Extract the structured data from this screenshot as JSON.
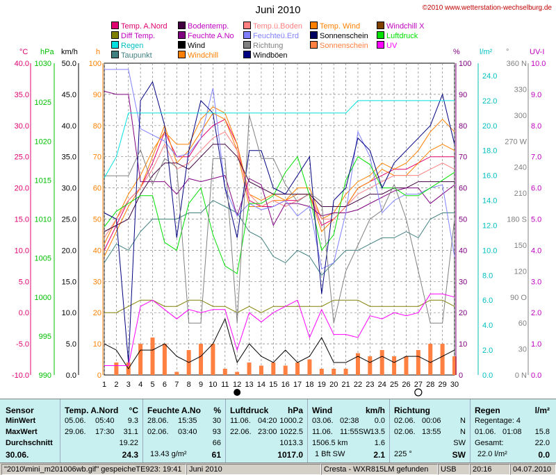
{
  "title": "Juni 2010",
  "copyright": "©2010 www.wetterstation-wechselburg.de",
  "legend": [
    {
      "label": "Temp. A.Nord",
      "color": "#e0006f",
      "col": 0,
      "row": 0
    },
    {
      "label": "Diff Temp.",
      "color": "#808000",
      "col": 0,
      "row": 1
    },
    {
      "label": "Regen",
      "color": "#00e0e0",
      "col": 0,
      "row": 2
    },
    {
      "label": "Taupunkt",
      "color": "#408080",
      "col": 0,
      "row": 3
    },
    {
      "label": "Bodentemp.",
      "color": "#400040",
      "col": 1,
      "row": 0
    },
    {
      "label": "Feuchte A.No",
      "color": "#800080",
      "col": 1,
      "row": 1
    },
    {
      "label": "Wind",
      "color": "#000000",
      "col": 1,
      "row": 2
    },
    {
      "label": "Windchill",
      "color": "#ff8000",
      "col": 1,
      "row": 3
    },
    {
      "label": "Temp.ü.Boden",
      "color": "#ff8080",
      "col": 2,
      "row": 0
    },
    {
      "label": "Feuchteü.Erd",
      "color": "#8080ff",
      "col": 2,
      "row": 1
    },
    {
      "label": "Richtung",
      "color": "#808080",
      "col": 2,
      "row": 2
    },
    {
      "label": "Windböen",
      "color": "#000080",
      "col": 2,
      "row": 3
    },
    {
      "label": "Temp. Wind",
      "color": "#ff8000",
      "col": 3,
      "row": 0
    },
    {
      "label": "Sonnenschein",
      "color": "#000060",
      "col": 3,
      "row": 1
    },
    {
      "label": "Sonnenschein",
      "color": "#ff8040",
      "col": 3,
      "row": 2
    },
    {
      "label": "Windchill X",
      "color": "#804000",
      "col": 4,
      "row": 0
    },
    {
      "label": "Luftdruck",
      "color": "#00e000",
      "col": 4,
      "row": 1
    },
    {
      "label": "UV",
      "color": "#ff00ff",
      "col": 4,
      "row": 2
    }
  ],
  "axes": {
    "temp": {
      "unit": "°C",
      "ticks": [
        "40.0",
        "35.0",
        "30.0",
        "25.0",
        "20.0",
        "15.0",
        "10.0",
        "5.0",
        "0.0",
        "-5.0",
        "-10.0"
      ],
      "color": "#e0006f"
    },
    "hpa": {
      "unit": "hPa",
      "ticks": [
        "1030",
        "1025",
        "1020",
        "1015",
        "1010",
        "1005",
        "1000",
        "995",
        "990"
      ],
      "color": "#00c000"
    },
    "kmh": {
      "unit": "km/h",
      "ticks": [
        "50.0",
        "45.0",
        "40.0",
        "35.0",
        "30.0",
        "25.0",
        "20.0",
        "15.0",
        "10.0",
        "5.0",
        "0.0"
      ],
      "color": "#000000"
    },
    "h": {
      "unit": "h",
      "ticks": [
        "100",
        "90",
        "80",
        "70",
        "60",
        "50",
        "40",
        "30",
        "20",
        "10",
        "0"
      ],
      "color": "#ff8000"
    },
    "pct": {
      "unit": "%",
      "ticks": [
        "100",
        "90",
        "80",
        "70",
        "60",
        "50",
        "40",
        "30",
        "20",
        "10",
        "0"
      ],
      "color": "#800080"
    },
    "rain": {
      "unit": "l/m²",
      "ticks": [
        "24.0",
        "22.0",
        "20.0",
        "18.0",
        "16.0",
        "14.0",
        "12.0",
        "10.0",
        "8.0",
        "6.0",
        "4.0",
        "2.0",
        "0.0"
      ],
      "color": "#00c0c0"
    },
    "dir": {
      "unit": "°",
      "ticks": [
        "360 N",
        "330",
        "300",
        "270 W",
        "240",
        "210",
        "180 S",
        "150",
        "120",
        "90 O",
        "60",
        "30",
        "0 N"
      ],
      "color": "#808080"
    },
    "uv": {
      "unit": "UV-I",
      "ticks": [
        "10.0",
        "9.0",
        "8.0",
        "7.0",
        "6.0",
        "5.0",
        "4.0",
        "3.0",
        "2.0",
        "1.0",
        "0.0"
      ],
      "color": "#c000c0"
    }
  },
  "chart_data": {
    "type": "line",
    "title": "Juni 2010",
    "x": [
      1,
      2,
      3,
      4,
      5,
      6,
      7,
      8,
      9,
      10,
      11,
      12,
      13,
      14,
      15,
      16,
      17,
      18,
      19,
      20,
      21,
      22,
      23,
      24,
      25,
      26,
      27,
      28,
      29,
      30
    ],
    "xlabels": [
      "1",
      "2",
      "3",
      "4",
      "5",
      "6",
      "7",
      "8",
      "9",
      "10",
      "11",
      "12",
      "13",
      "14",
      "15",
      "16",
      "17",
      "18",
      "19",
      "20",
      "21",
      "22",
      "23",
      "24",
      "25",
      "26",
      "27",
      "28",
      "29",
      "30"
    ],
    "moon_new_day": 12,
    "moon_full_day": 27,
    "ylim_temp": [
      -10,
      40
    ],
    "grid": true,
    "series": [
      {
        "name": "Temp. A.Nord",
        "axis": "temp",
        "color": "#e0006f",
        "values": [
          10,
          14,
          18,
          20,
          24,
          29,
          25,
          25,
          28,
          30,
          31,
          27,
          18,
          17,
          17,
          18,
          18,
          19,
          14,
          15,
          17,
          20,
          21,
          22,
          23,
          23,
          24,
          25,
          25,
          25
        ]
      },
      {
        "name": "Windchill",
        "axis": "temp",
        "color": "#ff8000",
        "values": [
          9,
          13,
          17,
          20,
          25,
          30,
          24,
          26,
          29,
          32,
          31,
          26,
          17,
          17,
          18,
          18,
          19,
          19,
          13,
          15,
          17,
          20,
          21,
          23,
          22,
          22,
          24,
          26,
          27,
          26
        ]
      },
      {
        "name": "Temp. Wind",
        "axis": "temp",
        "color": "#ff8000",
        "values": [
          11,
          15,
          19,
          22,
          26,
          29,
          27,
          27,
          31,
          33,
          32,
          27,
          19,
          18,
          19,
          18,
          20,
          20,
          15,
          16,
          19,
          21,
          22,
          24,
          23,
          24,
          26,
          29,
          31,
          29
        ]
      },
      {
        "name": "Temp.ü.Boden",
        "axis": "temp",
        "color": "#ff8080",
        "values": [
          12,
          15,
          18,
          20,
          23,
          27,
          23,
          24,
          26,
          28,
          29,
          26,
          19,
          17,
          18,
          17,
          18,
          19,
          15,
          15,
          17,
          19,
          20,
          21,
          22,
          22,
          22,
          23,
          24,
          23
        ]
      },
      {
        "name": "Bodentemp.",
        "axis": "temp",
        "color": "#400040",
        "values": [
          13,
          14,
          15,
          19,
          22,
          24,
          24,
          23,
          25,
          27,
          27,
          25,
          21,
          20,
          19,
          19,
          19,
          19,
          17,
          17,
          17,
          18,
          19,
          19,
          20,
          20,
          21,
          21,
          21,
          21
        ]
      },
      {
        "name": "Taupunkt",
        "axis": "temp",
        "color": "#408080",
        "values": [
          8,
          11,
          10,
          13,
          15,
          15,
          15,
          16,
          16,
          18,
          17,
          16,
          13,
          12,
          9,
          8,
          10,
          9,
          6,
          8,
          10,
          10,
          11,
          12,
          12,
          13,
          12,
          15,
          16,
          16
        ]
      },
      {
        "name": "Diff Temp.",
        "axis": "temp",
        "color": "#808000",
        "values": [
          0,
          0,
          1,
          2,
          2,
          1,
          1,
          2,
          2,
          1,
          1,
          0,
          1,
          0,
          1,
          1,
          1,
          1,
          1,
          2,
          2,
          2,
          1,
          1,
          1,
          1,
          1,
          2,
          2,
          1
        ]
      },
      {
        "name": "Feuchte A.No",
        "axis": "pct",
        "color": "#800080",
        "values": [
          91,
          90,
          90,
          62,
          62,
          62,
          58,
          63,
          62,
          63,
          64,
          51,
          63,
          61,
          48,
          55,
          55,
          54,
          51,
          52,
          52,
          53,
          55,
          57,
          59,
          60,
          60,
          55,
          58,
          61
        ]
      },
      {
        "name": "Feuchteü.Erd",
        "axis": "pct",
        "color": "#8080ff",
        "values": [
          98,
          98,
          98,
          79,
          77,
          75,
          70,
          71,
          76,
          92,
          60,
          51,
          55,
          53,
          54,
          56,
          51,
          54,
          34,
          36,
          52,
          78,
          70,
          52,
          56,
          58,
          58,
          60,
          61,
          38
        ]
      },
      {
        "name": "Luftdruck",
        "axis": "hpa",
        "color": "#00e000",
        "values": [
          1009,
          1011,
          1012,
          1013,
          1013,
          1007,
          1006,
          1012,
          1014,
          1008,
          1004,
          1003,
          1012,
          1012,
          1013,
          1016,
          1018,
          1013,
          1006,
          1008,
          1015,
          1018,
          1017,
          1014,
          1014,
          1013,
          1013,
          1014,
          1015,
          1016
        ]
      },
      {
        "name": "Windböen",
        "axis": "kmh",
        "color": "#000080",
        "values": [
          26,
          25,
          2,
          44,
          47,
          40,
          22,
          36,
          44,
          42,
          30,
          22,
          36,
          36,
          30,
          29,
          32,
          35,
          13,
          28,
          30,
          38,
          36,
          30,
          34,
          36,
          38,
          40,
          45,
          37
        ]
      },
      {
        "name": "Wind",
        "axis": "kmh",
        "color": "#000000",
        "values": [
          5,
          4,
          1,
          4,
          4,
          5,
          3,
          2,
          3,
          5,
          9,
          2,
          5,
          3,
          2,
          4,
          2,
          3,
          6,
          2,
          2,
          3,
          2,
          3,
          2,
          3,
          3,
          2,
          3,
          4
        ]
      },
      {
        "name": "Richtung",
        "axis": "dir",
        "color": "#808080",
        "values": [
          230,
          230,
          230,
          260,
          220,
          250,
          240,
          60,
          60,
          250,
          250,
          60,
          300,
          250,
          250,
          220,
          200,
          210,
          200,
          60,
          120,
          150,
          180,
          190,
          220,
          180,
          120,
          60,
          60,
          180
        ]
      },
      {
        "name": "UV",
        "axis": "uv",
        "color": "#ff00ff",
        "values": [
          0.3,
          0.3,
          0.3,
          2.2,
          2.4,
          2.1,
          1.8,
          2.1,
          2.0,
          2.1,
          2.1,
          0.8,
          2.0,
          1.7,
          2.0,
          2.2,
          2.4,
          1.2,
          2.1,
          1.3,
          1.3,
          1.2,
          1.9,
          1.8,
          2.0,
          1.9,
          2.0,
          2.6,
          2.6,
          2.5
        ]
      },
      {
        "name": "Regen",
        "axis": "rain",
        "color": "#00e0e0",
        "values": [
          15.8,
          17.5,
          21.0,
          21.0,
          21.0,
          21.0,
          21.0,
          21.0,
          21.0,
          21.0,
          21.0,
          21.0,
          21.0,
          21.0,
          21.0,
          21.0,
          21.0,
          21.0,
          21.0,
          21.0,
          21.0,
          22.0,
          22.0,
          22.0,
          22.0,
          22.0,
          22.0,
          22.0,
          22.0,
          22.0
        ]
      },
      {
        "name": "Sonnenschein",
        "axis": "h",
        "type": "bar",
        "color": "#ff8040",
        "values": [
          0,
          4,
          4,
          10,
          12,
          10,
          1,
          8,
          10,
          10,
          2,
          1,
          4,
          3,
          4,
          3,
          4,
          5,
          2,
          2,
          2,
          7,
          6,
          8,
          6,
          6,
          8,
          10,
          10,
          6
        ]
      }
    ]
  },
  "panel": {
    "sensor": {
      "title": "Sensor",
      "min": "MinWert",
      "max": "MaxWert",
      "avg": "Durchschnitt",
      "date": "30.06."
    },
    "temp": {
      "title": "Temp. A.Nord",
      "unit": "°C",
      "min_date": "05.06.",
      "min_time": "05:40",
      "min_val": "9.3",
      "max_date": "29.06.",
      "max_time": "17:30",
      "max_val": "31.1",
      "avg": "19.22",
      "cur": "24.3"
    },
    "feuchte": {
      "title": "Feuchte A.No",
      "unit": "%",
      "min_date": "28.06.",
      "min_time": "15:35",
      "min_val": "30",
      "max_date": "02.06.",
      "max_time": "03:40",
      "max_val": "93",
      "avg": "66",
      "extra": "13.43 g/m²",
      "cur": "61"
    },
    "druck": {
      "title": "Luftdruck",
      "unit": "hPa",
      "min_date": "11.06.",
      "min_time": "04:20",
      "min_val": "1000.2",
      "max_date": "22.06.",
      "max_time": "23:00",
      "max_val": "1022.5",
      "avg": "1013.3",
      "cur": "1017.0"
    },
    "wind": {
      "title": "Wind",
      "unit": "km/h",
      "min_date": "03.06.",
      "min_time": "02:38",
      "min_val": "0.0",
      "max_date": "11.06.",
      "max_time": "11:55SW",
      "max_val": "13.5",
      "dist": "1506.5 km",
      "avg": "1.6",
      "bft": "1 Bft SW",
      "cur": "2.1"
    },
    "richtung": {
      "title": "Richtung",
      "min_date": "02.06.",
      "min_time": "00:06",
      "min_val": "N",
      "max_date": "02.06.",
      "max_time": "13:55",
      "max_val": "N",
      "avg": "SW",
      "cur_deg": "225 °",
      "cur": "SW"
    },
    "regen": {
      "title": "Regen",
      "unit": "l/m²",
      "tage": "Regentage: 4",
      "max_date": "01.06.",
      "max_time": "01:08",
      "max_val": "15.8",
      "gesamt_label": "Gesamt:",
      "gesamt": "22.0",
      "cur_sum": "22.0 l/m²",
      "cur": "0.0"
    }
  },
  "status": {
    "file": "\"2010\\mini_m201006wb.gif\"  gespeicheTE923: 19:41",
    "month": "Juni 2010",
    "device": "Cresta - WXR815LM gefunden",
    "port": "USB",
    "time": "20:16",
    "date": "04.07.2010"
  }
}
